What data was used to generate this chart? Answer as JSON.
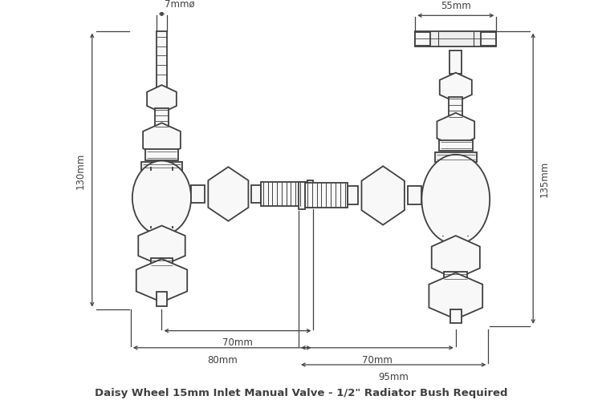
{
  "bg_color": "#ffffff",
  "line_color": "#404040",
  "lw": 1.3,
  "lw_thin": 0.7,
  "lw_dim": 0.9,
  "title": "Daisy Wheel 15mm Inlet Manual Valve - 1/2\" Radiator Bush Required",
  "title_fontsize": 9.5,
  "annotations_left": {
    "dim_7mm": "7mmø",
    "dim_130mm": "130mm",
    "dim_70mm": "70mm",
    "dim_80mm": "80mm"
  },
  "annotations_right": {
    "dim_55mm": "55mm",
    "dim_135mm": "135mm",
    "dim_70mm": "70mm",
    "dim_95mm": "95mm"
  },
  "figsize": [
    7.5,
    5.1
  ],
  "dpi": 100
}
